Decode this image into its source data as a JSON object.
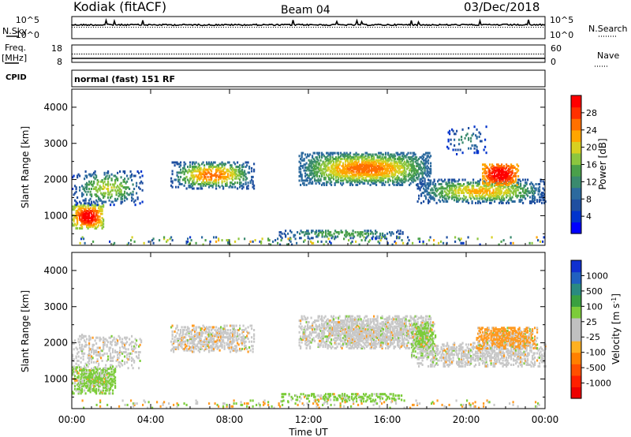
{
  "header": {
    "station": "Kodiak (fitACF)",
    "beam": "Beam 04",
    "date": "03/Dec/2018"
  },
  "left_labels": {
    "nsky": "N.Sky",
    "freq": "Freq.",
    "freq_unit": "[MHz]",
    "cpid": "CPID"
  },
  "right_labels": {
    "nsearch": "N.Search",
    "nave": "Nave"
  },
  "cpid_text": "normal (fast) 151 RF",
  "chart_data": [
    {
      "type": "line",
      "panel": "noise",
      "ytick_labels": [
        "10^5",
        "10^0"
      ],
      "right_tick_labels": [
        "10^5",
        "10^0"
      ],
      "series": [
        {
          "name": "N.Sky",
          "style": "solid",
          "level": "near top, ~10^4",
          "color": "#000000"
        },
        {
          "name": "N.Search",
          "style": "dotted",
          "color": "#000000"
        }
      ]
    },
    {
      "type": "line",
      "panel": "frequency",
      "ytick_labels": [
        "18",
        "8"
      ],
      "right_tick_labels": [
        "60",
        "0"
      ],
      "series": [
        {
          "name": "Freq.",
          "style": "solid",
          "approx_value_mhz": 10
        },
        {
          "name": "Nave",
          "style": "dotted",
          "approx_value": 27
        }
      ]
    },
    {
      "type": "heatmap",
      "panel": "power",
      "xlabel": "",
      "ylabel": "Slant Range [km]",
      "ylim": [
        180,
        4500
      ],
      "yticks": [
        1000,
        2000,
        3000,
        4000
      ],
      "xlim_hours": [
        0,
        24
      ],
      "colorbar": {
        "label": "Power [dB]",
        "ticks": [
          "4",
          "8",
          "12",
          "16",
          "20",
          "24",
          "28"
        ],
        "colors": [
          "#0000ff",
          "#0033cc",
          "#1f4fa0",
          "#2c6a9e",
          "#3a8a6e",
          "#4aa04a",
          "#8cc63f",
          "#d8d020",
          "#ffa500",
          "#ff7000",
          "#ff3000",
          "#ff0000"
        ]
      },
      "features": [
        {
          "hours": [
            0.0,
            1.5
          ],
          "range_km": [
            700,
            1300
          ],
          "level": "strong (24-28 dB)"
        },
        {
          "hours": [
            0.0,
            3.5
          ],
          "range_km": [
            1300,
            2200
          ],
          "level": "weak-moderate"
        },
        {
          "hours": [
            5.0,
            9.0
          ],
          "range_km": [
            1800,
            2500
          ],
          "level": "moderate"
        },
        {
          "hours": [
            11.5,
            18.0
          ],
          "range_km": [
            1800,
            2700
          ],
          "level": "moderate-strong (16-24 dB)"
        },
        {
          "hours": [
            17.5,
            24.0
          ],
          "range_km": [
            1400,
            2000
          ],
          "level": "moderate"
        },
        {
          "hours": [
            20.8,
            22.5
          ],
          "range_km": [
            1900,
            2400
          ],
          "level": "strong (24-28 dB)"
        },
        {
          "hours": [
            10.5,
            16.5
          ],
          "range_km": [
            400,
            600
          ],
          "level": "weak ground scatter band"
        }
      ]
    },
    {
      "type": "heatmap",
      "panel": "velocity",
      "xlabel": "Time UT",
      "ylabel": "Slant Range [km]",
      "ylim": [
        180,
        4500
      ],
      "yticks": [
        1000,
        2000,
        3000,
        4000
      ],
      "xlim_hours": [
        0,
        24
      ],
      "xtick_labels": [
        "00:00",
        "04:00",
        "08:00",
        "12:00",
        "16:00",
        "20:00",
        "00:00"
      ],
      "colorbar": {
        "label": "Velocity [m s",
        "label_sup": "-1",
        "label_end": "]",
        "ticks": [
          "1000",
          "500",
          "100",
          "25",
          "-25",
          "-100",
          "-500",
          "-1000"
        ],
        "colors": [
          "#1030d0",
          "#2060c0",
          "#2a8a80",
          "#3aa040",
          "#7ccc3a",
          "#c0c0c0",
          "#c0c0c0",
          "#ffb020",
          "#ff8000",
          "#ff5000",
          "#ff2000",
          "#ee0000"
        ]
      },
      "features": [
        {
          "hours": [
            0.0,
            2.0
          ],
          "range_km": [
            600,
            1300
          ],
          "level": "green (~100-500)"
        },
        {
          "hours": [
            0.0,
            24.0
          ],
          "range_km": [
            1400,
            2600
          ],
          "level": "grey (near zero)"
        },
        {
          "hours": [
            20.5,
            23.5
          ],
          "range_km": [
            1900,
            2400
          ],
          "level": "orange (~-100 to -500)"
        },
        {
          "hours": [
            10.5,
            16.5
          ],
          "range_km": [
            400,
            600
          ],
          "level": "green"
        }
      ]
    }
  ]
}
